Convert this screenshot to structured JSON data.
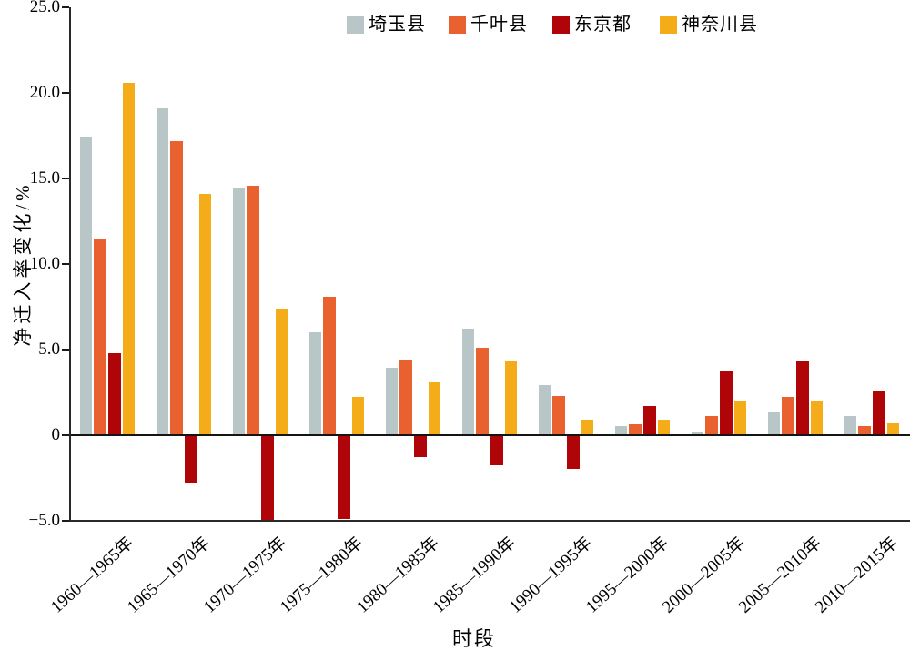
{
  "chart_data": {
    "type": "bar",
    "title": "",
    "xlabel": "时段",
    "ylabel": "净迁入率变化/%",
    "ylim": [
      -5,
      25
    ],
    "grid": false,
    "legend_position": "top",
    "yticks": [
      {
        "value": 25,
        "label": "25.0"
      },
      {
        "value": 20,
        "label": "20.0"
      },
      {
        "value": 15,
        "label": "15.0"
      },
      {
        "value": 10,
        "label": "10.0"
      },
      {
        "value": 5,
        "label": "5.0"
      },
      {
        "value": 0,
        "label": "0"
      },
      {
        "value": -5,
        "label": "−5.0"
      }
    ],
    "categories": [
      "1960—1965年",
      "1965—1970年",
      "1970—1975年",
      "1975—1980年",
      "1980—1985年",
      "1985—1990年",
      "1990—1995年",
      "1995—2000年",
      "2000—2005年",
      "2005—2010年",
      "2010—2015年"
    ],
    "series": [
      {
        "name": "埼玉县",
        "color": "#b9c6c8",
        "values": [
          17.4,
          19.1,
          14.5,
          6.0,
          3.9,
          6.2,
          2.9,
          0.5,
          0.2,
          1.3,
          1.1
        ]
      },
      {
        "name": "千叶县",
        "color": "#e8612e",
        "values": [
          11.5,
          17.2,
          14.6,
          8.1,
          4.4,
          5.1,
          2.3,
          0.6,
          1.1,
          2.2,
          0.5
        ]
      },
      {
        "name": "东京都",
        "color": "#b00508",
        "values": [
          4.8,
          -2.8,
          -5.0,
          -4.9,
          -1.3,
          -1.8,
          -2.0,
          1.7,
          3.7,
          4.3,
          2.6
        ]
      },
      {
        "name": "神奈川县",
        "color": "#f4ac19",
        "values": [
          20.6,
          14.1,
          7.4,
          2.2,
          3.1,
          4.3,
          0.9,
          0.9,
          2.0,
          2.0,
          0.7
        ]
      }
    ]
  }
}
